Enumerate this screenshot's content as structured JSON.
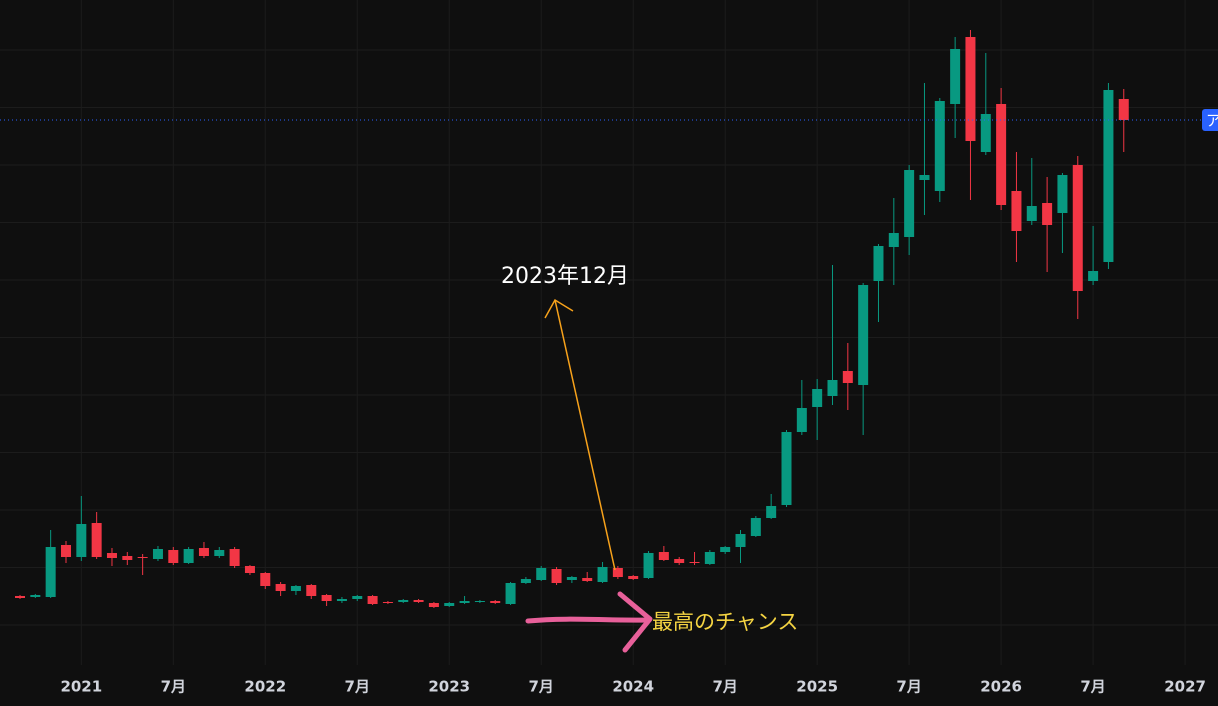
{
  "chart_data": {
    "type": "candlestick",
    "categories": [
      null,
      null,
      null,
      null,
      "2021",
      null,
      null,
      null,
      null,
      null,
      "7月",
      null,
      null,
      null,
      null,
      null,
      "2022",
      null,
      null,
      null,
      null,
      null,
      "7月",
      null,
      null,
      null,
      null,
      null,
      "2023",
      null,
      null,
      null,
      null,
      null,
      "7月",
      null,
      null,
      null,
      null,
      null,
      "2024",
      null,
      null,
      null,
      null,
      null,
      "7月",
      null,
      null,
      null,
      null,
      null,
      "2025",
      null,
      null,
      null,
      null,
      null,
      "7月",
      null,
      null,
      null,
      null,
      null,
      "2026",
      null,
      null,
      null,
      null,
      null,
      "7月",
      null,
      null,
      null,
      null,
      null,
      "2027"
    ],
    "open": [
      69,
      68,
      68,
      120,
      108,
      142,
      112,
      109,
      108,
      106,
      115,
      102,
      117,
      109,
      116,
      99,
      92,
      81,
      74,
      80,
      70,
      64,
      66,
      69,
      63,
      63,
      65,
      62,
      59,
      62,
      63,
      64,
      61,
      82,
      85,
      96,
      85,
      87,
      83,
      97,
      89,
      87,
      113,
      106,
      103,
      101,
      113,
      118,
      129,
      147,
      160,
      233,
      258,
      269,
      294,
      280,
      384,
      418,
      428,
      485,
      474,
      561,
      628,
      513,
      561,
      474,
      444,
      462,
      452,
      500,
      384,
      403,
      566,
      null,
      null,
      null,
      null
    ],
    "high": [
      70,
      71,
      135,
      124,
      169,
      153,
      117,
      113,
      111,
      119,
      118,
      118,
      123,
      118,
      118,
      100,
      93,
      83,
      80,
      81,
      71,
      68,
      70,
      70,
      64,
      66,
      66,
      63,
      63,
      69,
      65,
      65,
      83,
      88,
      99,
      98,
      89,
      93,
      103,
      99,
      90,
      114,
      119,
      108,
      113,
      115,
      119,
      135,
      149,
      171,
      235,
      285,
      286,
      400,
      322,
      382,
      421,
      467,
      500,
      582,
      567,
      628,
      635,
      612,
      577,
      513,
      507,
      488,
      492,
      509,
      439,
      582,
      576,
      null,
      null,
      null,
      null
    ],
    "low": [
      66,
      67,
      67,
      102,
      104,
      106,
      99,
      100,
      90,
      104,
      100,
      101,
      107,
      107,
      97,
      90,
      76,
      69,
      70,
      66,
      59,
      62,
      64,
      60,
      61,
      62,
      62,
      57,
      58,
      61,
      62,
      61,
      60,
      81,
      84,
      80,
      82,
      83,
      82,
      86,
      85,
      86,
      104,
      100,
      100,
      100,
      111,
      102,
      128,
      146,
      158,
      230,
      225,
      260,
      255,
      230,
      343,
      380,
      410,
      450,
      463,
      527,
      465,
      510,
      455,
      403,
      440,
      393,
      412,
      346,
      380,
      396,
      513,
      null,
      null,
      null,
      null
    ],
    "close": [
      67,
      70,
      118,
      108,
      141,
      108,
      107,
      105,
      107,
      116,
      102,
      116,
      109,
      115,
      99,
      92,
      79,
      74,
      79,
      69,
      64,
      66,
      69,
      61,
      62,
      65,
      63,
      58,
      62,
      64,
      64,
      62,
      82,
      86,
      97,
      82,
      88,
      84,
      98,
      88,
      86,
      112,
      105,
      102,
      102,
      113,
      118,
      131,
      147,
      159,
      233,
      257,
      276,
      285,
      282,
      380,
      419,
      432,
      495,
      490,
      564,
      616,
      524,
      551,
      460,
      434,
      459,
      440,
      490,
      374,
      394,
      575,
      545,
      null,
      null,
      null,
      null
    ],
    "up_color": "#089981",
    "down_color": "#f23645",
    "ylim": [
      0,
      661
    ],
    "grid": true,
    "last_price_label": "ア",
    "last_price_color": "#2962ff",
    "annotations": [
      {
        "text": "2023年12月",
        "color": "#ffffff"
      },
      {
        "text": "最高のチャンス",
        "color": "#f5d442"
      }
    ]
  }
}
